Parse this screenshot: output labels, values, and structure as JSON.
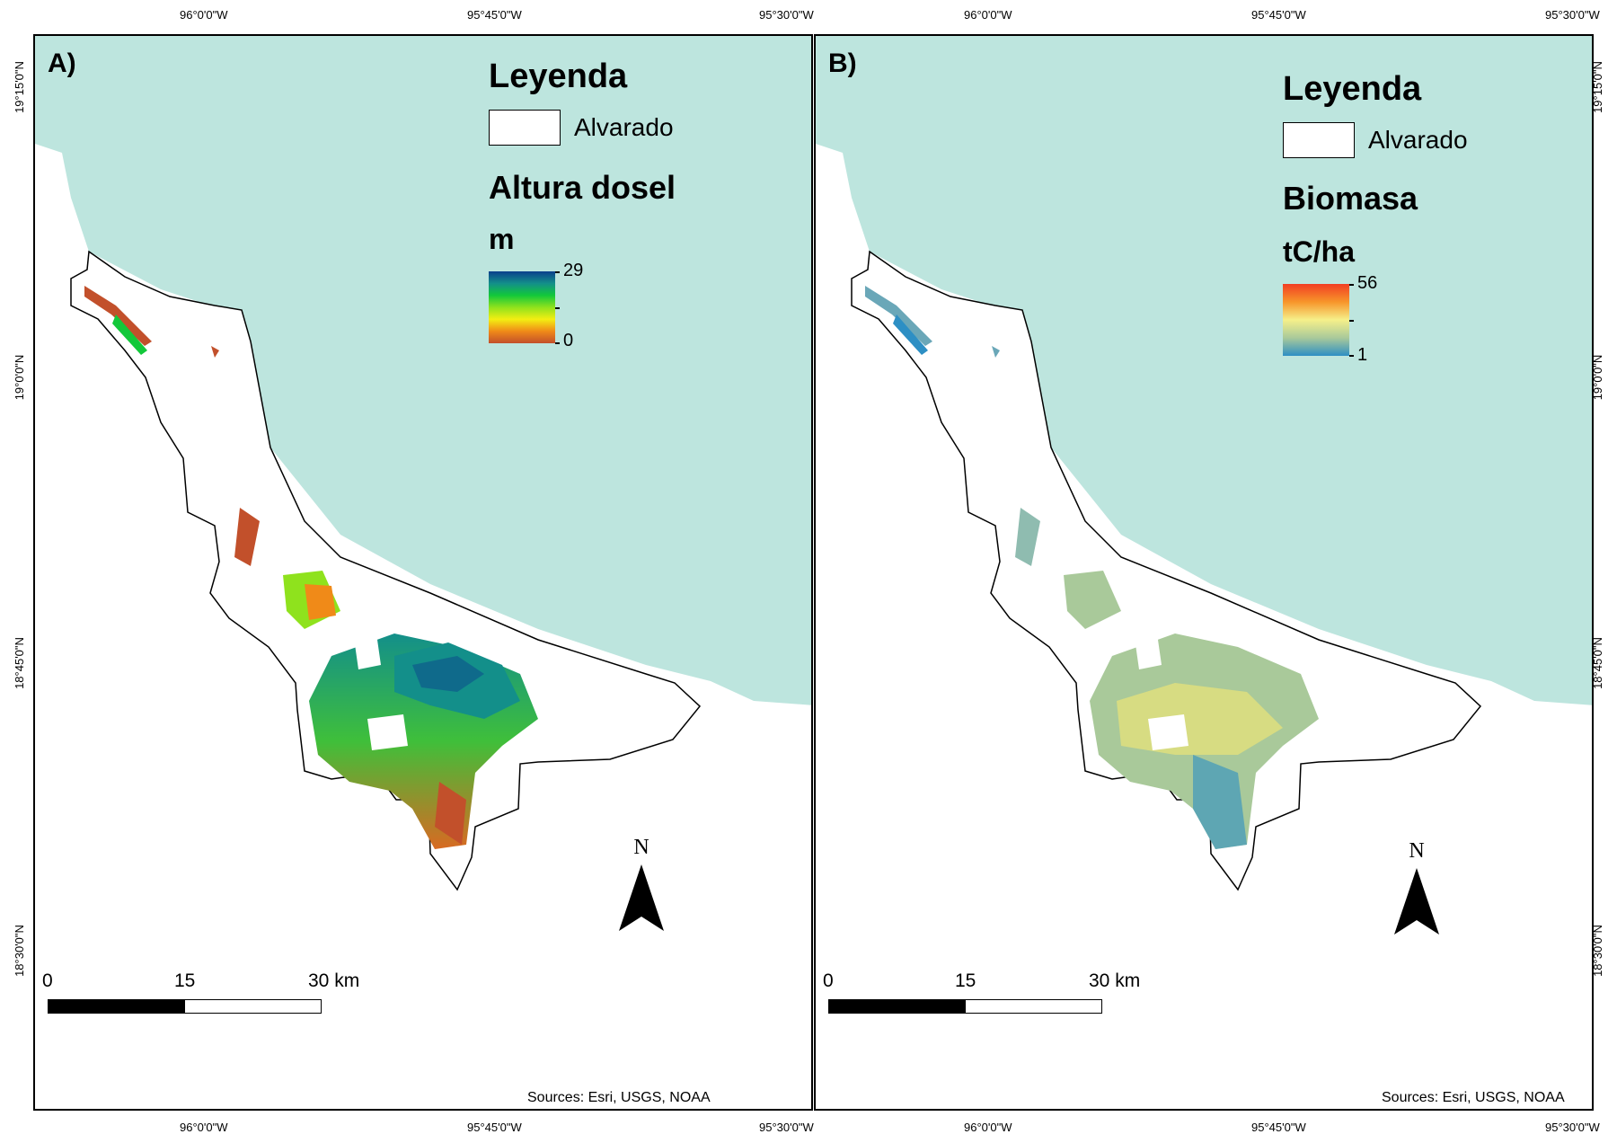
{
  "coordinates": {
    "top": [
      "96°0'0\"W",
      "95°45'0\"W",
      "95°30'0\"W"
    ],
    "bottom": [
      "96°0'0\"W",
      "95°45'0\"W",
      "95°30'0\"W"
    ],
    "left": [
      "19°15'0\"N",
      "19°0'0\"N",
      "18°45'0\"N",
      "18°30'0\"N"
    ],
    "right": [
      "19°15'0\"N",
      "19°0'0\"N",
      "18°45'0\"N",
      "18°30'0\"N"
    ]
  },
  "colors": {
    "sea": "#bde5de",
    "land": "#ffffff",
    "outline": "#000000",
    "canopy_ramp": [
      "#0b3f8c",
      "#138f8a",
      "#12c83a",
      "#8fe21d",
      "#f3ee12",
      "#f08a18",
      "#c2502b"
    ],
    "biomass_ramp": [
      "#f13e23",
      "#f7952a",
      "#f6f08a",
      "#a9c99a",
      "#2d8fc4"
    ]
  },
  "panels": [
    {
      "label": "A)",
      "legend_title": "Leyenda",
      "boundary_label": "Alvarado",
      "variable": "Altura dosel",
      "unit": "m",
      "ramp_max": "29",
      "ramp_min": "0",
      "ramp_name": "canopy",
      "north": "N",
      "scale": [
        "0",
        "15",
        "30 km"
      ],
      "sources": "Sources: Esri, USGS, NOAA"
    },
    {
      "label": "B)",
      "legend_title": "Leyenda",
      "boundary_label": "Alvarado",
      "variable": "Biomasa",
      "unit": "tC/ha",
      "ramp_max": "56",
      "ramp_min": "1",
      "ramp_name": "biomass",
      "north": "N",
      "scale": [
        "0",
        "15",
        "30 km"
      ],
      "sources": "Sources: Esri, USGS, NOAA"
    }
  ]
}
